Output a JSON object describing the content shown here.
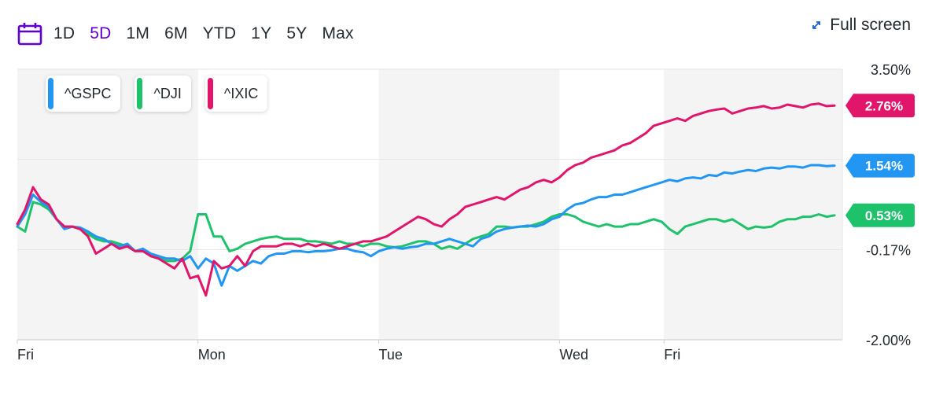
{
  "toolbar": {
    "calendar_icon": "calendar-icon",
    "ranges": [
      {
        "label": "1D",
        "active": false
      },
      {
        "label": "5D",
        "active": true
      },
      {
        "label": "1M",
        "active": false
      },
      {
        "label": "6M",
        "active": false
      },
      {
        "label": "YTD",
        "active": false
      },
      {
        "label": "1Y",
        "active": false
      },
      {
        "label": "5Y",
        "active": false
      },
      {
        "label": "Max",
        "active": false
      }
    ],
    "active_color": "#6001d2"
  },
  "fullscreen": {
    "label": "Full screen",
    "icon": "expand-arrows-icon",
    "color": "#1b5fd9"
  },
  "chart_data": {
    "type": "line",
    "y_unit": "%",
    "ylim": [
      -2.0,
      3.5
    ],
    "y_ticks": [
      "3.50%",
      "-0.17%",
      "-2.00%"
    ],
    "x_ticks": [
      "Fri",
      "Mon",
      "Tue",
      "Wed",
      "Fri"
    ],
    "x_tick_positions": [
      0,
      23,
      46,
      69,
      82.3
    ],
    "shaded_sessions": [
      [
        0,
        23
      ],
      [
        46,
        69
      ],
      [
        82.3,
        105
      ]
    ],
    "xlim": [
      0,
      105
    ],
    "gridlines": [
      3.5,
      1.67,
      -0.17,
      -2.0
    ],
    "series": [
      {
        "name": "^GSPC",
        "color": "#2196f3",
        "last_label": "1.54%",
        "x": [
          0,
          1,
          2,
          3,
          4,
          5,
          6,
          7,
          8,
          9,
          10,
          11,
          12,
          13,
          14,
          15,
          16,
          17,
          18,
          19,
          20,
          21,
          22,
          23,
          24,
          25,
          26,
          27,
          28,
          29,
          30,
          31,
          32,
          33,
          34,
          35,
          36,
          37,
          38,
          39,
          40,
          41,
          42,
          43,
          44,
          45,
          46,
          47,
          48,
          49,
          50,
          51,
          52,
          53,
          54,
          55,
          56,
          57,
          58,
          59,
          60,
          61,
          62,
          63,
          64,
          65,
          66,
          67,
          68,
          69,
          70,
          71,
          72,
          73,
          74,
          75,
          76,
          77,
          78,
          79,
          80,
          81,
          82,
          83,
          84,
          85,
          86,
          87,
          88,
          89,
          90,
          91,
          92,
          93,
          94,
          95,
          96,
          97,
          98,
          99,
          100,
          101,
          102,
          103,
          104
        ],
        "values": [
          0.3,
          0.55,
          0.95,
          0.8,
          0.7,
          0.45,
          0.25,
          0.3,
          0.28,
          0.2,
          0.1,
          0.05,
          -0.05,
          -0.1,
          -0.05,
          -0.2,
          -0.15,
          -0.25,
          -0.3,
          -0.35,
          -0.35,
          -0.4,
          -0.3,
          -0.55,
          -0.35,
          -0.45,
          -0.9,
          -0.5,
          -0.6,
          -0.5,
          -0.4,
          -0.45,
          -0.3,
          -0.25,
          -0.25,
          -0.2,
          -0.2,
          -0.22,
          -0.2,
          -0.2,
          -0.18,
          -0.15,
          -0.15,
          -0.2,
          -0.22,
          -0.3,
          -0.2,
          -0.15,
          -0.12,
          -0.15,
          -0.12,
          -0.1,
          -0.05,
          -0.05,
          0.0,
          0.05,
          0.0,
          -0.05,
          -0.1,
          0.05,
          0.1,
          0.2,
          0.25,
          0.28,
          0.3,
          0.32,
          0.3,
          0.35,
          0.45,
          0.5,
          0.65,
          0.75,
          0.78,
          0.85,
          0.9,
          0.9,
          0.95,
          0.95,
          1.0,
          1.05,
          1.1,
          1.15,
          1.2,
          1.25,
          1.22,
          1.28,
          1.3,
          1.28,
          1.35,
          1.33,
          1.4,
          1.38,
          1.42,
          1.45,
          1.43,
          1.48,
          1.5,
          1.48,
          1.52,
          1.52,
          1.5,
          1.55,
          1.55,
          1.53,
          1.54
        ]
      },
      {
        "name": "^DJI",
        "color": "#1ec26b",
        "last_label": "0.53%",
        "x": [
          0,
          1,
          2,
          3,
          4,
          5,
          6,
          7,
          8,
          9,
          10,
          11,
          12,
          13,
          14,
          15,
          16,
          17,
          18,
          19,
          20,
          21,
          22,
          23,
          24,
          25,
          26,
          27,
          28,
          29,
          30,
          31,
          32,
          33,
          34,
          35,
          36,
          37,
          38,
          39,
          40,
          41,
          42,
          43,
          44,
          45,
          46,
          47,
          48,
          49,
          50,
          51,
          52,
          53,
          54,
          55,
          56,
          57,
          58,
          59,
          60,
          61,
          62,
          63,
          64,
          65,
          66,
          67,
          68,
          69,
          70,
          71,
          72,
          73,
          74,
          75,
          76,
          77,
          78,
          79,
          80,
          81,
          82,
          83,
          84,
          85,
          86,
          87,
          88,
          89,
          90,
          91,
          92,
          93,
          94,
          95,
          96,
          97,
          98,
          99,
          100,
          101,
          102,
          103,
          104
        ],
        "values": [
          0.3,
          0.2,
          0.8,
          0.75,
          0.65,
          0.45,
          0.3,
          0.3,
          0.25,
          0.15,
          0.05,
          0.0,
          0.0,
          -0.05,
          -0.1,
          -0.2,
          -0.15,
          -0.3,
          -0.35,
          -0.4,
          -0.4,
          -0.35,
          -0.2,
          0.55,
          0.55,
          0.1,
          0.1,
          -0.2,
          -0.15,
          -0.05,
          0.0,
          0.05,
          0.08,
          0.1,
          0.05,
          0.05,
          0.05,
          0.0,
          0.0,
          -0.02,
          -0.05,
          0.0,
          -0.05,
          -0.05,
          -0.1,
          -0.05,
          -0.05,
          -0.1,
          -0.12,
          -0.1,
          -0.05,
          0.0,
          0.0,
          -0.05,
          -0.15,
          -0.1,
          -0.15,
          -0.05,
          0.05,
          0.1,
          0.15,
          0.3,
          0.3,
          0.28,
          0.3,
          0.3,
          0.35,
          0.4,
          0.5,
          0.55,
          0.55,
          0.5,
          0.4,
          0.35,
          0.3,
          0.35,
          0.3,
          0.3,
          0.35,
          0.35,
          0.4,
          0.45,
          0.4,
          0.25,
          0.15,
          0.3,
          0.35,
          0.4,
          0.45,
          0.45,
          0.4,
          0.45,
          0.35,
          0.25,
          0.3,
          0.28,
          0.3,
          0.4,
          0.45,
          0.45,
          0.5,
          0.5,
          0.55,
          0.5,
          0.53
        ]
      },
      {
        "name": "^IXIC",
        "color": "#e1166b",
        "last_label": "2.76%",
        "x": [
          0,
          1,
          2,
          3,
          4,
          5,
          6,
          7,
          8,
          9,
          10,
          11,
          12,
          13,
          14,
          15,
          16,
          17,
          18,
          19,
          20,
          21,
          22,
          23,
          24,
          25,
          26,
          27,
          28,
          29,
          30,
          31,
          32,
          33,
          34,
          35,
          36,
          37,
          38,
          39,
          40,
          41,
          42,
          43,
          44,
          45,
          46,
          47,
          48,
          49,
          50,
          51,
          52,
          53,
          54,
          55,
          56,
          57,
          58,
          59,
          60,
          61,
          62,
          63,
          64,
          65,
          66,
          67,
          68,
          69,
          70,
          71,
          72,
          73,
          74,
          75,
          76,
          77,
          78,
          79,
          80,
          81,
          82,
          83,
          84,
          85,
          86,
          87,
          88,
          89,
          90,
          91,
          92,
          93,
          94,
          95,
          96,
          97,
          98,
          99,
          100,
          101,
          102,
          103,
          104
        ],
        "values": [
          0.35,
          0.65,
          1.1,
          0.85,
          0.75,
          0.45,
          0.3,
          0.3,
          0.25,
          0.1,
          -0.25,
          -0.15,
          -0.05,
          -0.15,
          -0.1,
          -0.2,
          -0.2,
          -0.3,
          -0.35,
          -0.45,
          -0.55,
          -0.35,
          -0.75,
          -0.7,
          -1.1,
          -0.4,
          -0.55,
          -0.5,
          -0.3,
          -0.5,
          -0.2,
          -0.1,
          -0.1,
          -0.1,
          -0.05,
          -0.05,
          -0.1,
          -0.05,
          -0.1,
          -0.05,
          -0.1,
          -0.15,
          -0.1,
          -0.05,
          0.0,
          0.0,
          0.05,
          0.1,
          0.2,
          0.3,
          0.4,
          0.5,
          0.45,
          0.35,
          0.3,
          0.45,
          0.55,
          0.7,
          0.75,
          0.8,
          0.85,
          0.9,
          0.85,
          0.95,
          1.05,
          1.1,
          1.2,
          1.25,
          1.2,
          1.3,
          1.45,
          1.55,
          1.6,
          1.7,
          1.75,
          1.8,
          1.85,
          1.95,
          2.0,
          2.1,
          2.2,
          2.35,
          2.4,
          2.45,
          2.5,
          2.45,
          2.55,
          2.6,
          2.65,
          2.68,
          2.7,
          2.6,
          2.65,
          2.7,
          2.72,
          2.75,
          2.7,
          2.72,
          2.78,
          2.75,
          2.72,
          2.78,
          2.8,
          2.75,
          2.76
        ]
      }
    ]
  }
}
